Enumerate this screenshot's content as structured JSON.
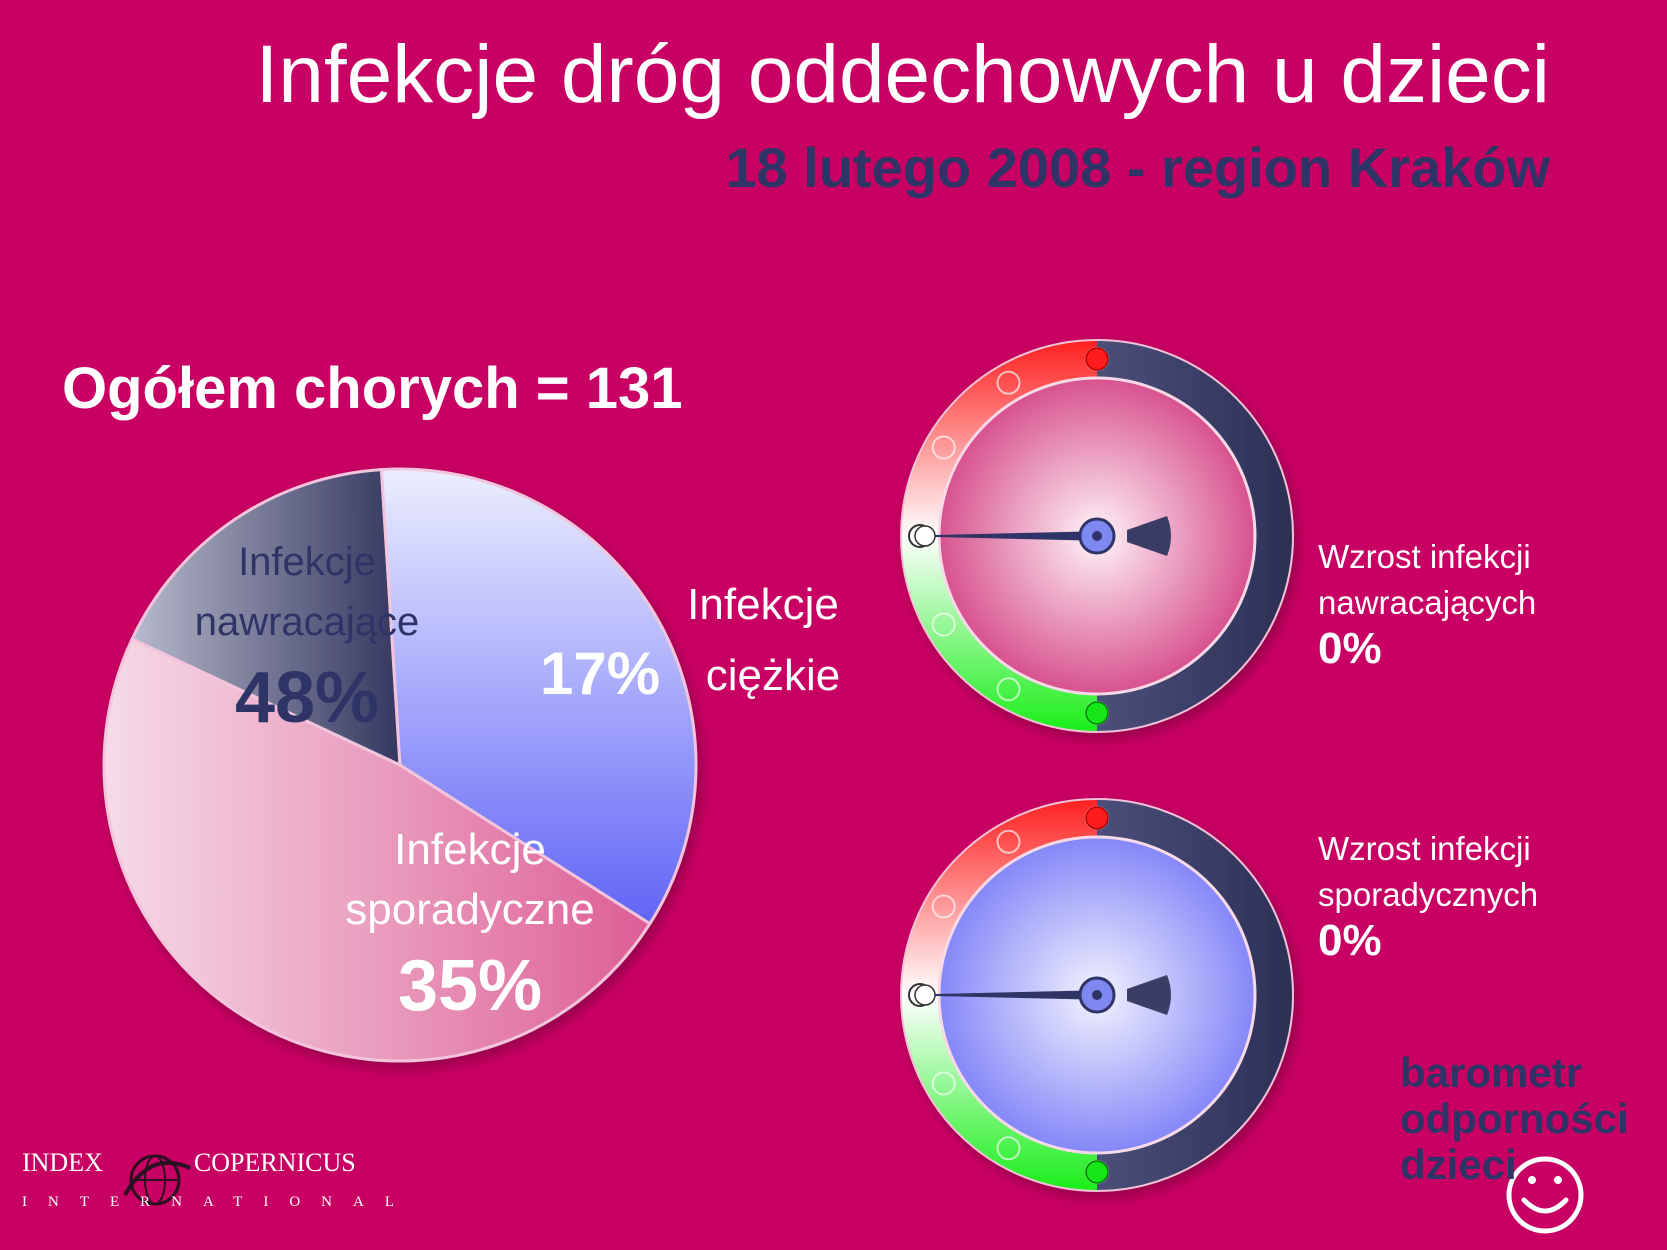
{
  "header": {
    "title": "Infekcje dróg oddechowych u dzieci",
    "subtitle": "18 lutego 2008 - region Kraków"
  },
  "summary": {
    "total_label": "Ogółem chorych = 131"
  },
  "chart_data": [
    {
      "type": "pie",
      "slices": [
        {
          "label_line1": "Infekcje",
          "label_line2": "nawracające",
          "value": 48,
          "value_text": "48%",
          "color": "#e3709f"
        },
        {
          "label_line1": "Infekcje",
          "label_line2": "ciężkie",
          "value": 17,
          "value_text": "17%",
          "color": "#3a3d66"
        },
        {
          "label_line1": "Infekcje",
          "label_line2": "sporadyczne",
          "value": 35,
          "value_text": "35%",
          "color": "#6b6ff5"
        }
      ]
    },
    {
      "type": "gauge",
      "caption_line1": "Wzrost infekcji",
      "caption_line2": "nawracających",
      "value": 0,
      "value_text": "0%",
      "face_color": "#d0317a"
    },
    {
      "type": "gauge",
      "caption_line1": "Wzrost infekcji",
      "caption_line2": "sporadycznych",
      "value": 0,
      "value_text": "0%",
      "face_color": "#7c7ff7"
    }
  ],
  "colors": {
    "background": "#c90063",
    "navy": "#2f3466",
    "scale_red": "#ff2a2a",
    "scale_green": "#22ee22"
  },
  "branding": {
    "line1": "barometr",
    "line2": "odporności",
    "line3": "dzieci",
    "smile_icon": "smiley-icon",
    "org_left": "INDEX",
    "org_right": "COPERNICUS",
    "org_sub": "INTERNATIONAL",
    "globe_icon": "globe-icon"
  }
}
